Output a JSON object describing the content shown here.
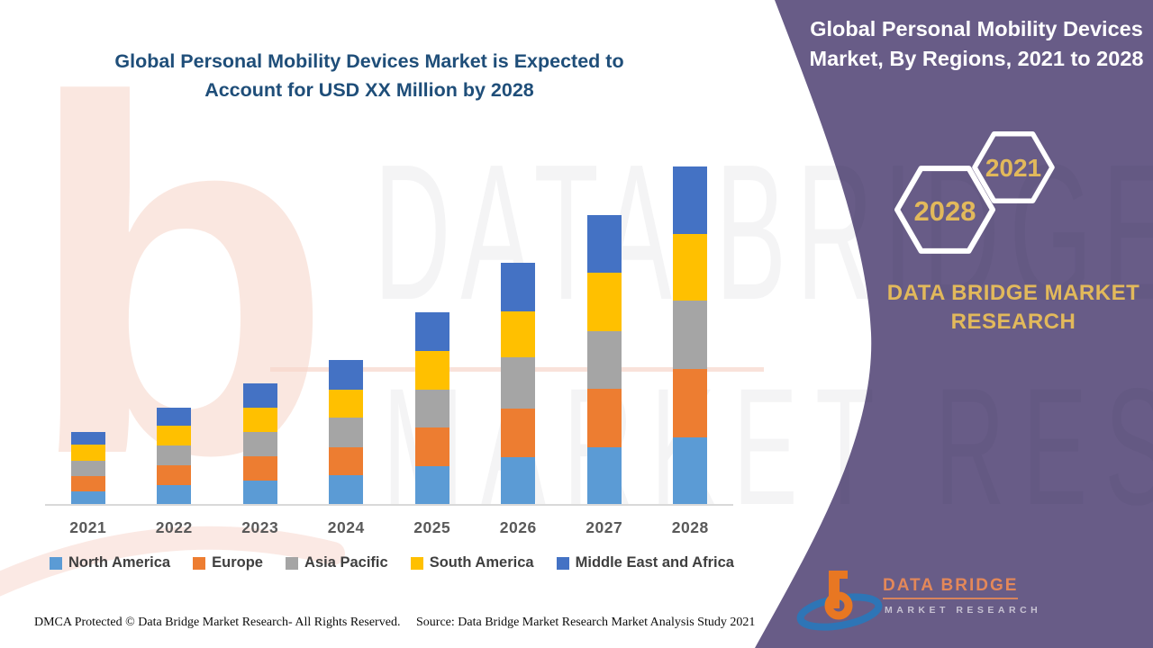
{
  "header": {
    "left_title": "Global Personal Mobility Devices Market is Expected to Account for USD XX Million by 2028",
    "right_title": "Global Personal Mobility Devices Market, By Regions, 2021 to 2028"
  },
  "side_panel": {
    "hexagon_back_label": "2021",
    "hexagon_front_label": "2028",
    "brand_caption": "DATA BRIDGE MARKET RESEARCH"
  },
  "chart_data": {
    "type": "bar",
    "stacked": true,
    "title": "Global Personal Mobility Devices Market, By Regions, 2021 to 2028",
    "categories": [
      "2021",
      "2022",
      "2023",
      "2024",
      "2025",
      "2026",
      "2027",
      "2028"
    ],
    "series": [
      {
        "name": "North America",
        "color": "#5B9BD5",
        "values": [
          14,
          21,
          26,
          32,
          42,
          52,
          63,
          74
        ]
      },
      {
        "name": "Europe",
        "color": "#ED7D31",
        "values": [
          17,
          22,
          27,
          31,
          43,
          54,
          65,
          76
        ]
      },
      {
        "name": "Asia Pacific",
        "color": "#A5A5A5",
        "values": [
          17,
          22,
          27,
          33,
          42,
          57,
          64,
          76
        ]
      },
      {
        "name": "South America",
        "color": "#FFC000",
        "values": [
          18,
          22,
          27,
          31,
          43,
          51,
          65,
          74
        ]
      },
      {
        "name": "Middle East and Africa",
        "color": "#4472C4",
        "values": [
          14,
          20,
          27,
          33,
          43,
          54,
          64,
          75
        ]
      }
    ],
    "xlabel": "",
    "ylabel": "",
    "value_axis_labels_shown": false,
    "legend_position": "bottom",
    "note": "Bar values are relative units read from pixel heights; source labels values as USD XX Million"
  },
  "legend_note": "legend items mirror chart_data.series order",
  "footer": {
    "dmca": "DMCA Protected © Data Bridge Market Research- All Rights Reserved.",
    "source": "Source: Data Bridge Market Research Market Analysis Study 2021"
  },
  "logo": {
    "name_line": "DATA BRIDGE",
    "subtitle_line": "MARKET RESEARCH"
  },
  "watermark": {
    "letter": "b",
    "line1": "DATA BRIDGE",
    "line2": "MARKET RESEARCH"
  },
  "colors": {
    "accent_purple": "#685C87",
    "gold": "#E2B95B",
    "title_navy": "#1F4E79",
    "axis_line": "#D9D9D9",
    "x_label_gray": "#595959",
    "legend_text": "#3F3F3F"
  }
}
